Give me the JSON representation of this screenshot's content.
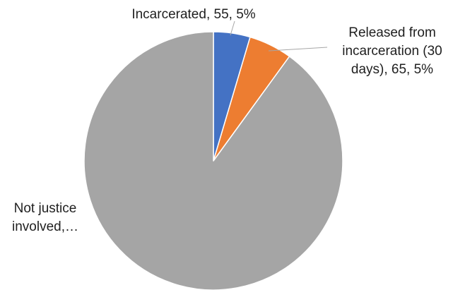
{
  "chart_data": {
    "type": "pie",
    "title": "",
    "start_angle": "top",
    "direction": "clockwise",
    "legend": "none",
    "slices": [
      {
        "label": "Incarcerated",
        "value": 55,
        "percent_label": "5%",
        "color": "#4472c4",
        "data_label": [
          "Incarcerated, 55, 5%"
        ]
      },
      {
        "label": "Released from incarceration (30 days)",
        "value": 65,
        "percent_label": "5%",
        "color": "#ed7d31",
        "data_label": [
          "Released from",
          "incarceration (30",
          "days), 65, 5%"
        ]
      },
      {
        "label": "Not justice involved",
        "value": 1080,
        "color": "#a5a5a5",
        "data_label": [
          "Not justice",
          "involved,…"
        ]
      }
    ]
  }
}
